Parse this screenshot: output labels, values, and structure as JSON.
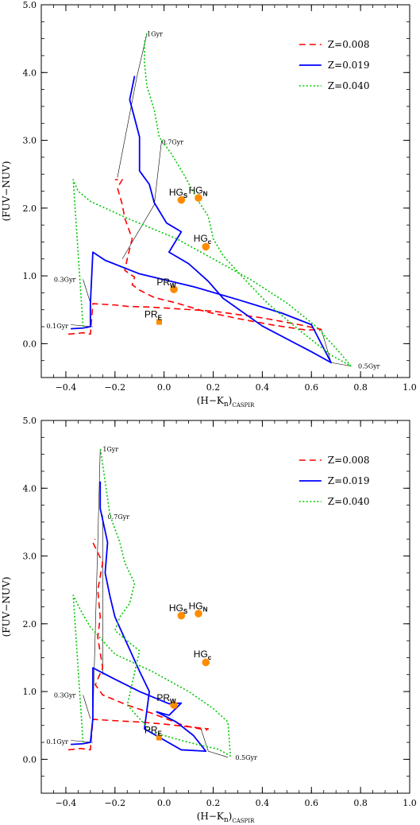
{
  "chart_data": [
    {
      "type": "line",
      "title": "",
      "xlabel": "(H−K",
      "xlabel_sub1": "n",
      "xlabel_mid": ")",
      "xlabel_sub2": "CASPIR",
      "ylabel": "(FUV−NUV)",
      "xlim": [
        -0.5,
        1.0
      ],
      "ylim": [
        -0.5,
        5.0
      ],
      "xticks": [
        "−0.4",
        "−0.2",
        "0.0",
        "0.2",
        "0.4",
        "0.6",
        "0.8",
        "1.0"
      ],
      "xtick_values": [
        -0.4,
        -0.2,
        0.0,
        0.2,
        0.4,
        0.6,
        0.8,
        1.0
      ],
      "yticks": [
        "0.0",
        "1.0",
        "2.0",
        "3.0",
        "4.0",
        "5.0"
      ],
      "ytick_values": [
        0,
        1,
        2,
        3,
        4,
        5
      ],
      "legend_position": "top-right",
      "series": [
        {
          "name": "Z=0.008",
          "color": "#ff0000",
          "style": "dashed",
          "x": [
            -0.39,
            -0.33,
            -0.3,
            -0.29,
            -0.2,
            -0.15,
            -0.06,
            0.2,
            0.4,
            0.55,
            0.64,
            0.58,
            0.45,
            0.3,
            0.17,
            0.05,
            -0.04,
            -0.1,
            -0.13,
            -0.12,
            -0.16,
            -0.15,
            -0.13,
            -0.16,
            -0.17,
            -0.19,
            -0.17,
            -0.2
          ],
          "y": [
            0.14,
            0.16,
            0.14,
            0.59,
            0.57,
            0.55,
            0.54,
            0.48,
            0.38,
            0.28,
            0.21,
            0.2,
            0.27,
            0.37,
            0.47,
            0.6,
            0.68,
            0.79,
            0.87,
            0.98,
            1.08,
            1.25,
            1.55,
            1.85,
            2.05,
            2.3,
            2.42,
            2.42
          ]
        },
        {
          "name": "Z=0.019",
          "color": "#0000ff",
          "style": "solid",
          "x": [
            -0.38,
            -0.33,
            -0.3,
            -0.3,
            -0.29,
            -0.24,
            -0.1,
            0.12,
            0.3,
            0.48,
            0.6,
            0.68,
            0.6,
            0.4,
            0.24,
            0.18,
            0.1,
            0.02,
            0.07,
            0.01,
            -0.04,
            -0.06,
            -0.1,
            -0.1,
            -0.14,
            -0.12
          ],
          "y": [
            0.22,
            0.23,
            0.25,
            0.6,
            1.35,
            1.23,
            1.03,
            0.84,
            0.65,
            0.45,
            0.28,
            -0.28,
            -0.12,
            0.26,
            0.67,
            0.92,
            1.18,
            1.35,
            1.65,
            1.78,
            2.08,
            2.35,
            2.55,
            3.05,
            3.6,
            3.95
          ]
        },
        {
          "name": "Z=0.040",
          "color": "#00c800",
          "style": "dotted",
          "x": [
            -0.33,
            -0.37,
            -0.35,
            -0.3,
            -0.15,
            0.05,
            0.2,
            0.35,
            0.5,
            0.62,
            0.72,
            0.76,
            0.68,
            0.55,
            0.42,
            0.32,
            0.24,
            0.2,
            0.18,
            0.14,
            0.08,
            0.03,
            -0.02,
            -0.04,
            -0.07,
            -0.08,
            -0.08,
            -0.07
          ],
          "y": [
            0.25,
            2.42,
            2.25,
            2.1,
            1.85,
            1.55,
            1.25,
            0.95,
            0.6,
            0.25,
            -0.15,
            -0.33,
            -0.17,
            0.2,
            0.6,
            0.98,
            1.3,
            1.55,
            1.88,
            2.1,
            2.5,
            2.8,
            3.05,
            3.45,
            3.8,
            4.15,
            4.45,
            4.58
          ]
        }
      ],
      "isochrones": [
        {
          "label": "1Gyr",
          "x": [
            -0.19,
            -0.11,
            -0.07
          ],
          "y": [
            2.45,
            3.95,
            4.57
          ],
          "label_x": -0.07,
          "label_y": 4.57
        },
        {
          "label": "0.7Gyr",
          "x": [
            -0.17,
            -0.04,
            -0.01
          ],
          "y": [
            1.25,
            2.05,
            3.0
          ],
          "label_x": -0.01,
          "label_y": 2.98
        },
        {
          "label": "0.3Gyr",
          "x": [
            -0.33,
            -0.3
          ],
          "y": [
            0.95,
            0.6
          ],
          "label_x": -0.36,
          "label_y": 0.95
        },
        {
          "label": "0.1Gyr",
          "x": [
            -0.38,
            -0.29
          ],
          "y": [
            0.28,
            0.25
          ],
          "label_x": -0.39,
          "label_y": 0.26
        },
        {
          "label": "0.5Gyr",
          "x": [
            0.64,
            0.68,
            0.76
          ],
          "y": [
            0.21,
            -0.28,
            -0.33
          ],
          "label_x": 0.79,
          "label_y": -0.33
        }
      ],
      "objects": [
        {
          "label": "HG",
          "sub": "S",
          "x": 0.07,
          "y": 2.12,
          "shape": "circle",
          "lx": 0.02,
          "ly": 2.23
        },
        {
          "label": "HG",
          "sub": "N",
          "x": 0.14,
          "y": 2.15,
          "shape": "circle",
          "lx": 0.1,
          "ly": 2.26
        },
        {
          "label": "HG",
          "sub": "c",
          "x": 0.17,
          "y": 1.43,
          "shape": "circle",
          "lx": 0.12,
          "ly": 1.55
        },
        {
          "label": "PR",
          "sub": "W",
          "x": 0.04,
          "y": 0.8,
          "shape": "circle",
          "lx": -0.03,
          "ly": 0.91
        },
        {
          "label": "PR",
          "sub": "E",
          "x": -0.02,
          "y": 0.32,
          "shape": "square",
          "lx": -0.08,
          "ly": 0.43
        }
      ]
    },
    {
      "type": "line",
      "title": "",
      "xlabel": "(H−K",
      "xlabel_sub1": "n",
      "xlabel_mid": ")",
      "xlabel_sub2": "CASPIR",
      "ylabel": "(FUV−NUV)",
      "xlim": [
        -0.5,
        1.0
      ],
      "ylim": [
        -0.5,
        5.0
      ],
      "xticks": [
        "−0.4",
        "−0.2",
        "0.0",
        "0.2",
        "0.4",
        "0.6",
        "0.8",
        "1.0"
      ],
      "xtick_values": [
        -0.4,
        -0.2,
        0.0,
        0.2,
        0.4,
        0.6,
        0.8,
        1.0
      ],
      "yticks": [
        "0.0",
        "1.0",
        "2.0",
        "3.0",
        "4.0",
        "5.0"
      ],
      "ytick_values": [
        0,
        1,
        2,
        3,
        4,
        5
      ],
      "legend_position": "top-right",
      "series": [
        {
          "name": "Z=0.008",
          "color": "#ff0000",
          "style": "dashed",
          "x": [
            -0.39,
            -0.34,
            -0.3,
            -0.29,
            -0.2,
            -0.1,
            0.0,
            0.1,
            0.18,
            0.17,
            0.08,
            -0.05,
            -0.15,
            -0.25,
            -0.28,
            -0.25,
            -0.27,
            -0.26,
            -0.27,
            -0.25,
            -0.29,
            -0.28
          ],
          "y": [
            0.14,
            0.16,
            0.14,
            0.59,
            0.57,
            0.55,
            0.52,
            0.48,
            0.45,
            0.43,
            0.5,
            0.68,
            0.8,
            0.95,
            1.1,
            1.35,
            1.8,
            2.1,
            2.5,
            2.9,
            3.2,
            3.25
          ]
        },
        {
          "name": "Z=0.019",
          "color": "#0000ff",
          "style": "solid",
          "x": [
            -0.38,
            -0.33,
            -0.3,
            -0.29,
            -0.29,
            -0.21,
            -0.1,
            0.02,
            0.07,
            0.02,
            -0.03,
            0.05,
            0.12,
            0.17,
            0.07,
            -0.08,
            -0.06,
            -0.1,
            -0.15,
            -0.2,
            -0.22,
            -0.24,
            -0.23,
            -0.26,
            -0.26
          ],
          "y": [
            0.22,
            0.23,
            0.25,
            0.6,
            1.35,
            1.2,
            1.0,
            0.82,
            0.83,
            0.65,
            0.7,
            0.55,
            0.35,
            0.12,
            0.14,
            0.45,
            1.0,
            1.3,
            1.7,
            2.1,
            2.4,
            2.75,
            3.2,
            3.7,
            4.1
          ]
        },
        {
          "name": "Z=0.040",
          "color": "#00c800",
          "style": "dotted",
          "x": [
            -0.33,
            -0.37,
            -0.34,
            -0.3,
            -0.2,
            -0.05,
            0.1,
            0.2,
            0.26,
            0.27,
            0.22,
            0.1,
            -0.05,
            -0.15,
            -0.1,
            -0.2,
            -0.18,
            -0.14,
            -0.12,
            -0.16,
            -0.18,
            -0.22,
            -0.24,
            -0.26
          ],
          "y": [
            0.25,
            2.42,
            2.2,
            1.95,
            1.55,
            1.3,
            1.0,
            0.75,
            0.55,
            0.05,
            0.15,
            0.25,
            0.4,
            0.8,
            1.6,
            1.9,
            2.1,
            2.3,
            2.6,
            2.9,
            3.2,
            3.6,
            4.1,
            4.6
          ]
        }
      ],
      "isochrones": [
        {
          "label": "1Gyr",
          "x": [
            -0.29,
            -0.27,
            -0.26
          ],
          "y": [
            0.6,
            3.2,
            4.58
          ],
          "label_x": -0.25,
          "label_y": 4.58
        },
        {
          "label": "0.7Gyr",
          "x": [
            -0.25,
            -0.25
          ],
          "y": [
            1.25,
            3.6
          ],
          "label_x": -0.23,
          "label_y": 3.58
        },
        {
          "label": "0.3Gyr",
          "x": [
            -0.33,
            -0.3
          ],
          "y": [
            0.95,
            0.6
          ],
          "label_x": -0.36,
          "label_y": 0.95
        },
        {
          "label": "0.1Gyr",
          "x": [
            -0.38,
            -0.29
          ],
          "y": [
            0.28,
            0.25
          ],
          "label_x": -0.39,
          "label_y": 0.26
        },
        {
          "label": "0.5Gyr",
          "x": [
            0.15,
            0.18,
            0.26
          ],
          "y": [
            0.45,
            0.12,
            0.03
          ],
          "label_x": 0.29,
          "label_y": 0.03
        }
      ],
      "objects": [
        {
          "label": "HG",
          "sub": "S",
          "x": 0.07,
          "y": 2.12,
          "shape": "circle",
          "lx": 0.02,
          "ly": 2.23
        },
        {
          "label": "HG",
          "sub": "N",
          "x": 0.14,
          "y": 2.15,
          "shape": "circle",
          "lx": 0.1,
          "ly": 2.26
        },
        {
          "label": "HG",
          "sub": "c",
          "x": 0.17,
          "y": 1.43,
          "shape": "circle",
          "lx": 0.12,
          "ly": 1.55
        },
        {
          "label": "PR",
          "sub": "W",
          "x": 0.04,
          "y": 0.8,
          "shape": "circle",
          "lx": -0.03,
          "ly": 0.91
        },
        {
          "label": "PR",
          "sub": "E",
          "x": -0.02,
          "y": 0.32,
          "shape": "square",
          "lx": -0.08,
          "ly": 0.43
        }
      ]
    }
  ]
}
